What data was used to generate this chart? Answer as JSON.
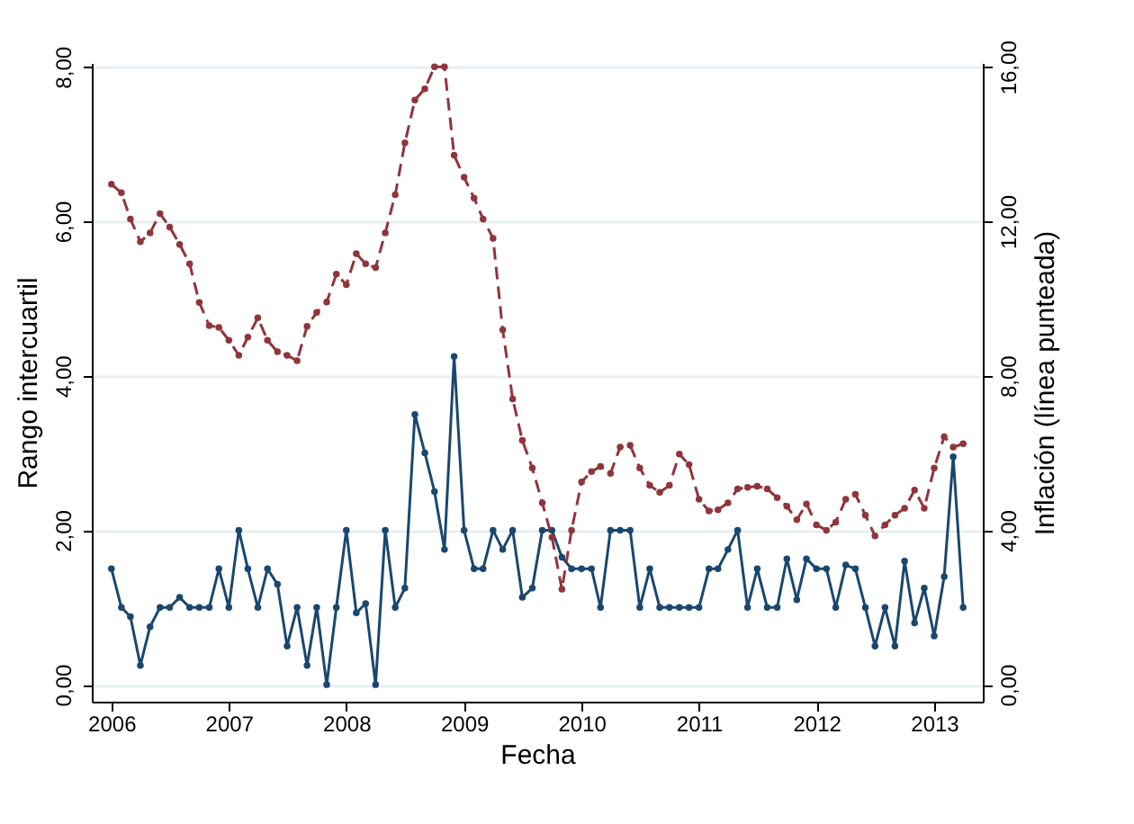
{
  "chart_data": {
    "type": "line",
    "xlabel": "Fecha",
    "ylabel": "Rango intercuartil",
    "y2label": "Inflación (línea punteada)",
    "x": [
      "2006-01",
      "2006-02",
      "2006-03",
      "2006-04",
      "2006-05",
      "2006-06",
      "2006-07",
      "2006-08",
      "2006-09",
      "2006-10",
      "2006-11",
      "2006-12",
      "2007-01",
      "2007-02",
      "2007-03",
      "2007-04",
      "2007-05",
      "2007-06",
      "2007-07",
      "2007-08",
      "2007-09",
      "2007-10",
      "2007-11",
      "2007-12",
      "2008-01",
      "2008-02",
      "2008-03",
      "2008-04",
      "2008-05",
      "2008-06",
      "2008-07",
      "2008-08",
      "2008-09",
      "2008-10",
      "2008-11",
      "2008-12",
      "2009-01",
      "2009-02",
      "2009-03",
      "2009-04",
      "2009-05",
      "2009-06",
      "2009-07",
      "2009-08",
      "2009-09",
      "2009-10",
      "2009-11",
      "2009-12",
      "2010-01",
      "2010-02",
      "2010-03",
      "2010-04",
      "2010-05",
      "2010-06",
      "2010-07",
      "2010-08",
      "2010-09",
      "2010-10",
      "2010-11",
      "2010-12",
      "2011-01",
      "2011-02",
      "2011-03",
      "2011-04",
      "2011-05",
      "2011-06",
      "2011-07",
      "2011-08",
      "2011-09",
      "2011-10",
      "2011-11",
      "2011-12",
      "2012-01",
      "2012-02",
      "2012-03",
      "2012-04",
      "2012-05",
      "2012-06",
      "2012-07",
      "2012-08",
      "2012-09",
      "2012-10",
      "2012-11",
      "2012-12",
      "2013-01",
      "2013-02",
      "2013-03",
      "2013-04"
    ],
    "series": [
      {
        "color": "#1a476f",
        "line_style": "solid",
        "values": [
          1.5,
          1.0,
          0.88,
          0.25,
          0.75,
          1.0,
          1.0,
          1.13,
          1.0,
          1.0,
          1.0,
          1.5,
          1.0,
          2.0,
          1.5,
          1.0,
          1.5,
          1.3,
          0.5,
          1.0,
          0.25,
          1.0,
          0.0,
          1.0,
          2.0,
          0.93,
          1.05,
          0.0,
          2.0,
          1.0,
          1.25,
          3.5,
          3.0,
          2.5,
          1.75,
          4.25,
          2.0,
          1.5,
          1.5,
          2.0,
          1.75,
          2.0,
          1.13,
          1.25,
          2.0,
          2.0,
          1.65,
          1.5,
          1.5,
          1.5,
          1.0,
          2.0,
          2.0,
          2.0,
          1.0,
          1.5,
          1.0,
          1.0,
          1.0,
          1.0,
          1.0,
          1.5,
          1.5,
          1.75,
          2.0,
          1.0,
          1.5,
          1.0,
          1.0,
          1.63,
          1.1,
          1.63,
          1.5,
          1.5,
          1.0,
          1.55,
          1.5,
          1.0,
          0.5,
          1.0,
          0.5,
          1.6,
          0.8,
          1.25,
          0.63,
          1.4,
          2.95,
          1.0
        ]
      },
      {
        "color": "#90353b",
        "line_style": "dashed",
        "axis": "y2",
        "values": [
          12.96,
          12.74,
          12.06,
          11.47,
          11.7,
          12.2,
          11.85,
          11.4,
          10.9,
          9.9,
          9.3,
          9.25,
          8.92,
          8.53,
          9.0,
          9.5,
          8.92,
          8.62,
          8.53,
          8.39,
          9.28,
          9.64,
          9.91,
          10.63,
          10.36,
          11.16,
          10.9,
          10.8,
          11.7,
          12.69,
          14.03,
          15.14,
          15.43,
          16.0,
          16.0,
          13.71,
          13.14,
          12.6,
          12.06,
          11.56,
          9.19,
          7.4,
          6.33,
          5.61,
          4.71,
          3.82,
          2.47,
          4.0,
          5.25,
          5.52,
          5.65,
          5.47,
          6.15,
          6.2,
          5.61,
          5.16,
          4.98,
          5.16,
          5.97,
          5.7,
          4.8,
          4.5,
          4.53,
          4.71,
          5.07,
          5.11,
          5.14,
          5.07,
          4.84,
          4.62,
          4.27,
          4.68,
          4.14,
          4.0,
          4.21,
          4.8,
          4.93,
          4.39,
          3.85,
          4.14,
          4.39,
          4.57,
          5.04,
          4.57,
          5.61,
          6.42,
          6.15,
          6.24
        ]
      }
    ],
    "xlim": [
      "2005-11-01",
      "2013-06-01"
    ],
    "xticks": [
      "2006",
      "2007",
      "2008",
      "2009",
      "2010",
      "2011",
      "2012",
      "2013"
    ],
    "ylim": [
      -0.22,
      8.05
    ],
    "yticks": [
      {
        "value": 0,
        "label": "0,00"
      },
      {
        "value": 2,
        "label": "2,00"
      },
      {
        "value": 4,
        "label": "4,00"
      },
      {
        "value": 6,
        "label": "6,00"
      },
      {
        "value": 8,
        "label": "8,00"
      }
    ],
    "y2lim": [
      -0.44,
      16.1
    ],
    "y2ticks": [
      {
        "value": 0,
        "label": "0,00"
      },
      {
        "value": 4,
        "label": "4,00"
      },
      {
        "value": 8,
        "label": "8,00"
      },
      {
        "value": 12,
        "label": "12,00"
      },
      {
        "value": 16,
        "label": "16,00"
      }
    ],
    "grid": "y",
    "marker": "circle"
  }
}
